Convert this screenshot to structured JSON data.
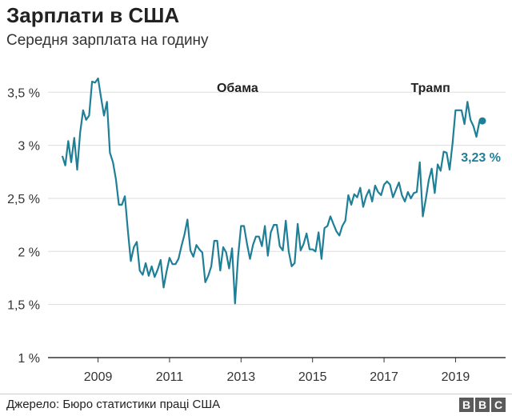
{
  "title": "Зарплати в США",
  "subtitle": "Середня зарплата на годину",
  "source": "Джерело: Бюро статистики праці США",
  "logo": [
    "B",
    "B",
    "C"
  ],
  "colors": {
    "line": "#1f7f97",
    "grid": "#dddddd",
    "axis": "#333333",
    "label": "#1f7f97"
  },
  "chart_data": {
    "type": "line",
    "title": "",
    "xlabel": "",
    "ylabel": "",
    "xlim": [
      2007.6,
      2020.4
    ],
    "ylim": [
      1,
      3.6
    ],
    "yticks": [
      1,
      1.5,
      2,
      2.5,
      3,
      3.5
    ],
    "ytick_labels": [
      "1 %",
      "1,5 %",
      "2 %",
      "2,5 %",
      "3 %",
      "3,5 %"
    ],
    "xticks": [
      2009,
      2011,
      2013,
      2015,
      2017,
      2019
    ],
    "xtick_labels": [
      "2009",
      "2011",
      "2013",
      "2015",
      "2017",
      "2019"
    ],
    "grid": "horizontal",
    "annotations": [
      {
        "text": "Обама",
        "x": 2012.9,
        "y": 3.6
      },
      {
        "text": "Трамп",
        "x": 2018.3,
        "y": 3.6
      }
    ],
    "end_label": "3,23 %",
    "series": [
      {
        "x": [
          2008.0,
          2008.083,
          2008.167,
          2008.25,
          2008.333,
          2008.417,
          2008.5,
          2008.583,
          2008.667,
          2008.75,
          2008.833,
          2008.917,
          2009.0,
          2009.083,
          2009.167,
          2009.25,
          2009.333,
          2009.417,
          2009.5,
          2009.583,
          2009.667,
          2009.75,
          2009.833,
          2009.917,
          2010.0,
          2010.083,
          2010.167,
          2010.25,
          2010.333,
          2010.417,
          2010.5,
          2010.583,
          2010.667,
          2010.75,
          2010.833,
          2010.917,
          2011.0,
          2011.083,
          2011.167,
          2011.25,
          2011.333,
          2011.417,
          2011.5,
          2011.583,
          2011.667,
          2011.75,
          2011.833,
          2011.917,
          2012.0,
          2012.083,
          2012.167,
          2012.25,
          2012.333,
          2012.417,
          2012.5,
          2012.583,
          2012.667,
          2012.75,
          2012.833,
          2012.917,
          2013.0,
          2013.083,
          2013.167,
          2013.25,
          2013.333,
          2013.417,
          2013.5,
          2013.583,
          2013.667,
          2013.75,
          2013.833,
          2013.917,
          2014.0,
          2014.083,
          2014.167,
          2014.25,
          2014.333,
          2014.417,
          2014.5,
          2014.583,
          2014.667,
          2014.75,
          2014.833,
          2014.917,
          2015.0,
          2015.083,
          2015.167,
          2015.25,
          2015.333,
          2015.417,
          2015.5,
          2015.583,
          2015.667,
          2015.75,
          2015.833,
          2015.917,
          2016.0,
          2016.083,
          2016.167,
          2016.25,
          2016.333,
          2016.417,
          2016.5,
          2016.583,
          2016.667,
          2016.75,
          2016.833,
          2016.917,
          2017.0,
          2017.083,
          2017.167,
          2017.25,
          2017.333,
          2017.417,
          2017.5,
          2017.583,
          2017.667,
          2017.75,
          2017.833,
          2017.917,
          2018.0,
          2018.083,
          2018.167,
          2018.25,
          2018.333,
          2018.417,
          2018.5,
          2018.583,
          2018.667,
          2018.75,
          2018.833,
          2018.917,
          2019.0,
          2019.083,
          2019.167,
          2019.25,
          2019.333,
          2019.417,
          2019.5,
          2019.583,
          2019.667,
          2019.75
        ],
        "y": [
          2.9,
          2.81,
          3.04,
          2.84,
          3.07,
          2.77,
          3.12,
          3.33,
          3.24,
          3.28,
          3.6,
          3.59,
          3.63,
          3.45,
          3.28,
          3.41,
          2.93,
          2.84,
          2.68,
          2.44,
          2.44,
          2.52,
          2.2,
          1.91,
          2.04,
          2.09,
          1.82,
          1.78,
          1.89,
          1.77,
          1.86,
          1.76,
          1.83,
          1.92,
          1.66,
          1.81,
          1.94,
          1.88,
          1.88,
          1.93,
          2.05,
          2.16,
          2.3,
          2.01,
          1.95,
          2.06,
          2.02,
          1.99,
          1.71,
          1.77,
          1.86,
          2.1,
          2.1,
          1.82,
          2.04,
          1.99,
          1.84,
          2.03,
          1.51,
          1.95,
          2.24,
          2.24,
          2.07,
          1.93,
          2.06,
          2.14,
          2.14,
          2.05,
          2.24,
          1.96,
          2.18,
          2.25,
          2.25,
          2.05,
          2.01,
          2.29,
          2.0,
          1.86,
          1.89,
          2.26,
          2.01,
          2.07,
          2.17,
          2.02,
          2.02,
          2.0,
          2.18,
          1.93,
          2.22,
          2.24,
          2.33,
          2.26,
          2.19,
          2.15,
          2.24,
          2.29,
          2.53,
          2.44,
          2.54,
          2.51,
          2.6,
          2.42,
          2.52,
          2.58,
          2.47,
          2.62,
          2.56,
          2.53,
          2.63,
          2.66,
          2.63,
          2.51,
          2.58,
          2.65,
          2.53,
          2.47,
          2.56,
          2.5,
          2.55,
          2.56,
          2.84,
          2.33,
          2.49,
          2.67,
          2.78,
          2.55,
          2.82,
          2.76,
          2.94,
          2.93,
          2.77,
          3.02,
          3.33,
          3.33,
          3.33,
          3.2,
          3.41,
          3.24,
          3.18,
          3.08,
          3.22,
          3.23
        ]
      }
    ]
  }
}
